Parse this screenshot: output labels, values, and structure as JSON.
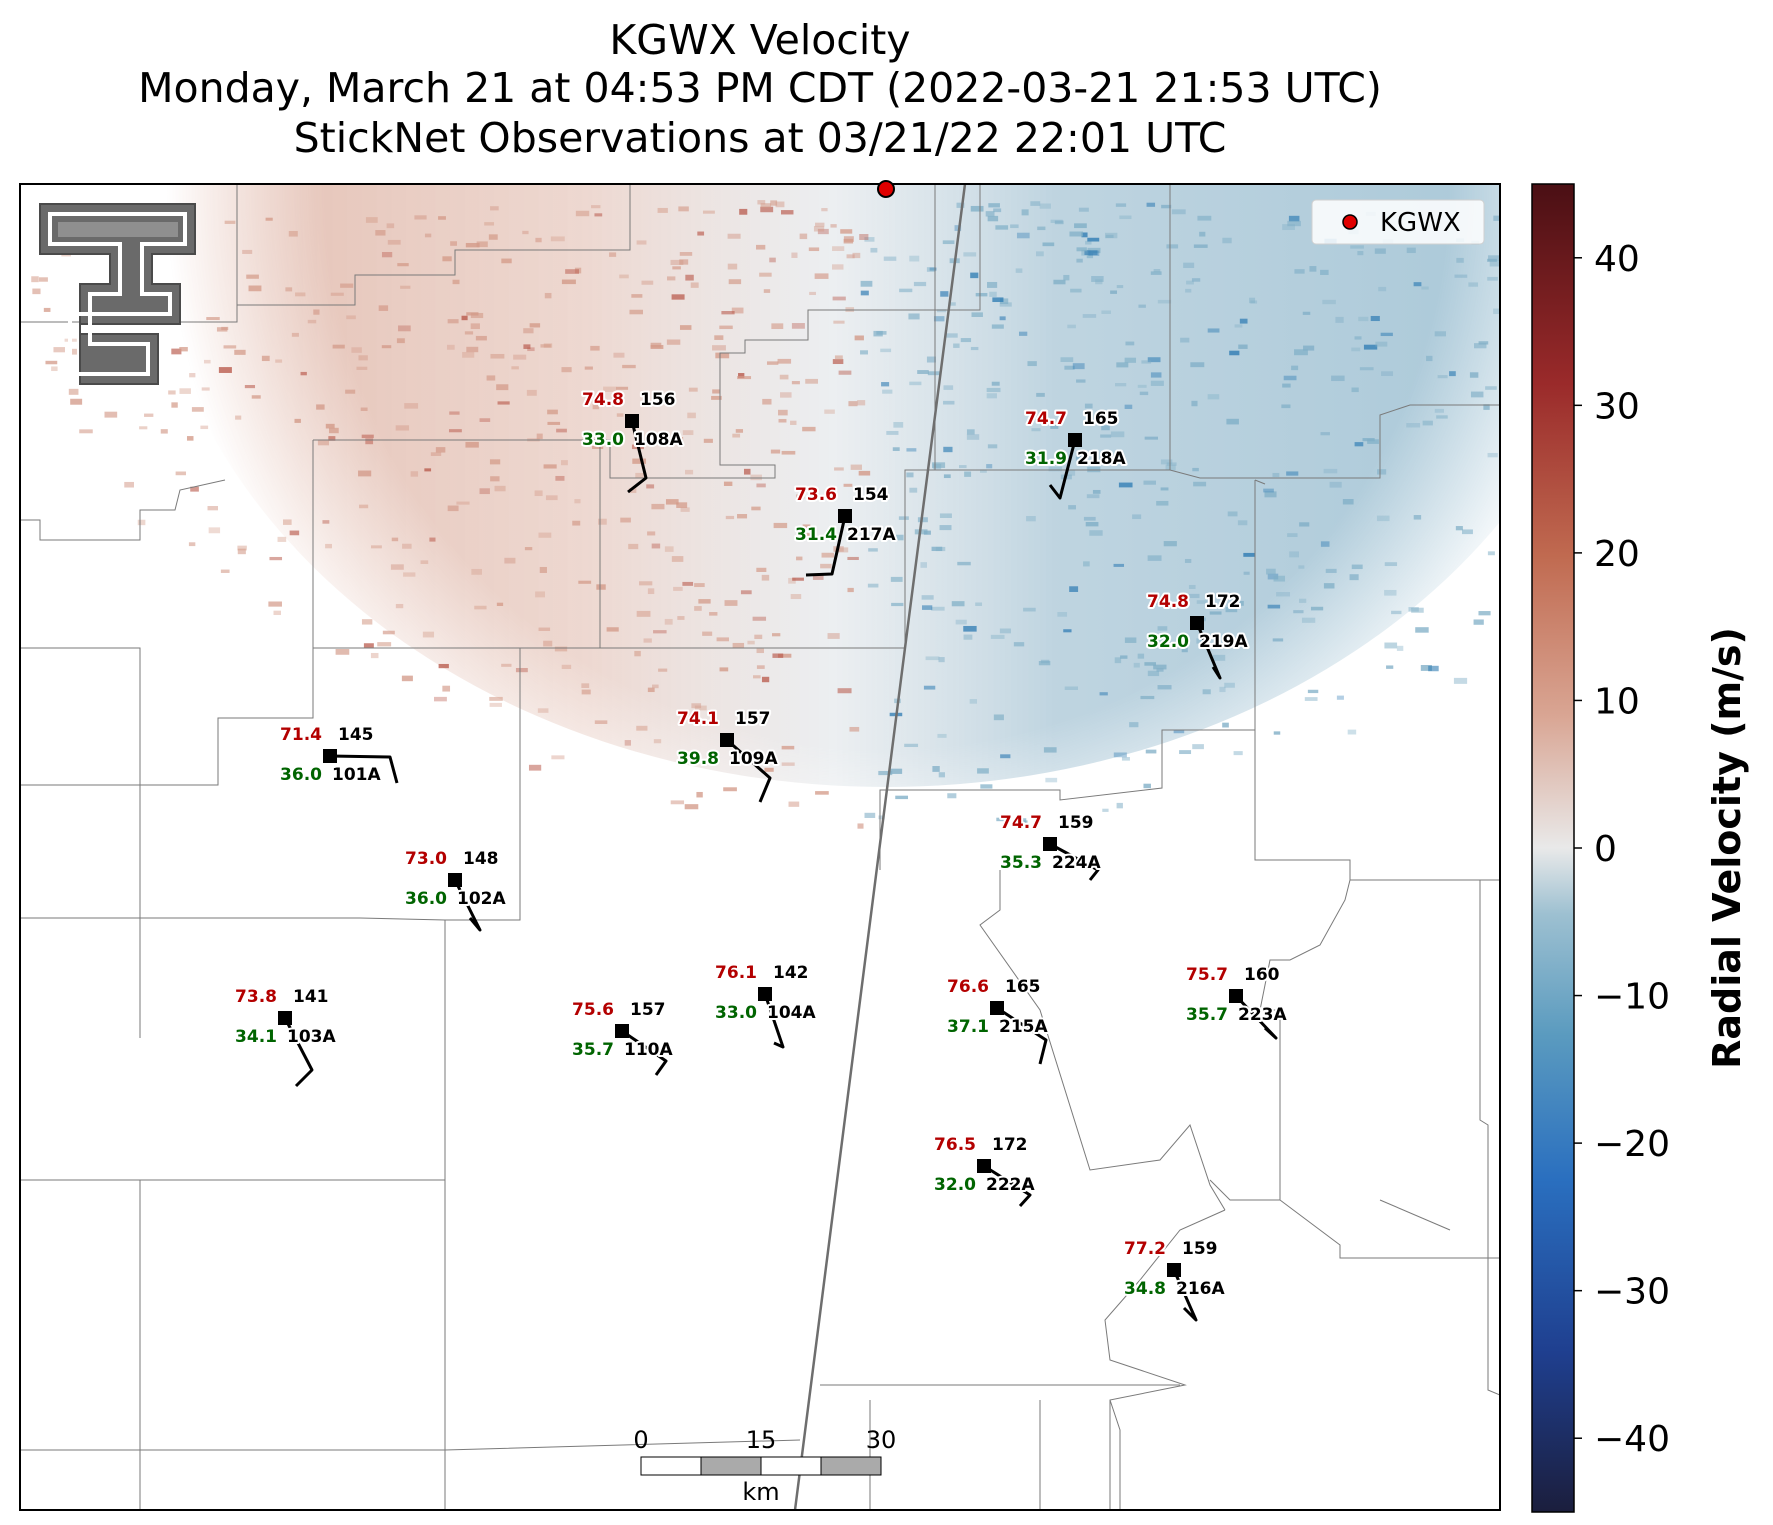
{
  "title": {
    "line1": "KGWX Velocity",
    "line2": "Monday, March 21 at 04:53 PM CDT (2022-03-21 21:53 UTC)",
    "line3": "StickNet Observations at 03/21/22 22:01 UTC"
  },
  "legend": {
    "label": "KGWX",
    "marker_color": "#e00000"
  },
  "colorbar": {
    "label": "Radial Velocity (m/s)",
    "min": -45,
    "max": 45,
    "ticks": [
      "40",
      "30",
      "20",
      "10",
      "0",
      "−10",
      "−20",
      "−30",
      "−40"
    ],
    "tick_values": [
      40,
      30,
      20,
      10,
      0,
      -10,
      -20,
      -30,
      -40
    ],
    "colors": [
      "#1b1e3d",
      "#1f3f8f",
      "#2a6fbf",
      "#5b9bbf",
      "#9dc0d1",
      "#e9e9e9",
      "#d9a593",
      "#c06a50",
      "#9a2a2a",
      "#4a0f14"
    ]
  },
  "scale_bar": {
    "ticks": [
      "0",
      "15",
      "30"
    ],
    "unit": "km"
  },
  "logo": {
    "name": "texas-tech-double-t-logo"
  },
  "stations": [
    {
      "id": "108A",
      "temp": "74.8",
      "dew": "33.0",
      "pres": "156"
    },
    {
      "id": "217A",
      "temp": "73.6",
      "dew": "31.4",
      "pres": "154"
    },
    {
      "id": "218A",
      "temp": "74.7",
      "dew": "31.9",
      "pres": "165"
    },
    {
      "id": "219A",
      "temp": "74.8",
      "dew": "32.0",
      "pres": "172"
    },
    {
      "id": "101A",
      "temp": "71.4",
      "dew": "36.0",
      "pres": "145"
    },
    {
      "id": "109A",
      "temp": "74.1",
      "dew": "39.8",
      "pres": "157"
    },
    {
      "id": "224A",
      "temp": "74.7",
      "dew": "35.3",
      "pres": "159"
    },
    {
      "id": "102A",
      "temp": "73.0",
      "dew": "36.0",
      "pres": "148"
    },
    {
      "id": "103A",
      "temp": "73.8",
      "dew": "34.1",
      "pres": "141"
    },
    {
      "id": "110A",
      "temp": "75.6",
      "dew": "35.7",
      "pres": "157"
    },
    {
      "id": "104A",
      "temp": "76.1",
      "dew": "33.0",
      "pres": "142"
    },
    {
      "id": "215A",
      "temp": "76.6",
      "dew": "37.1",
      "pres": "165"
    },
    {
      "id": "223A",
      "temp": "75.7",
      "dew": "35.7",
      "pres": "160"
    },
    {
      "id": "222A",
      "temp": "76.5",
      "dew": "32.0",
      "pres": "172"
    },
    {
      "id": "216A",
      "temp": "77.2",
      "dew": "34.8",
      "pres": "159"
    }
  ]
}
